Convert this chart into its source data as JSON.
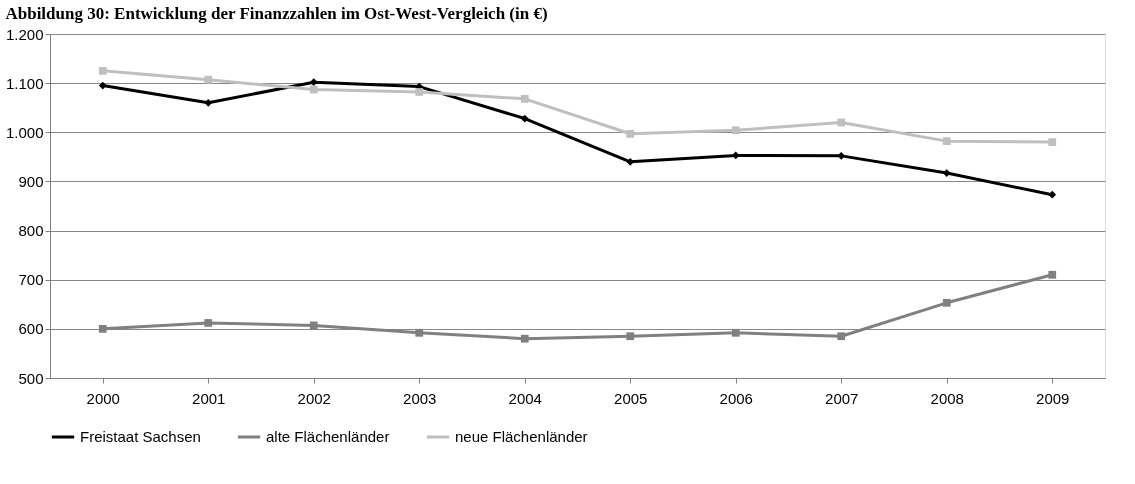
{
  "chart_data": {
    "type": "line",
    "title": "Abbildung 30: Entwicklung der Finanzzahlen im Ost-West-Vergleich (in €)",
    "categories": [
      "2000",
      "2001",
      "2002",
      "2003",
      "2004",
      "2005",
      "2006",
      "2007",
      "2008",
      "2009"
    ],
    "series": [
      {
        "name": "Freistaat Sachsen",
        "color": "#000000",
        "marker": "diamond",
        "values": [
          1095,
          1060,
          1102,
          1093,
          1028,
          940,
          953,
          952,
          917,
          873
        ]
      },
      {
        "name": "alte Flächenländer",
        "color": "#808080",
        "marker": "square",
        "values": [
          600,
          612,
          607,
          592,
          580,
          585,
          592,
          585,
          653,
          710
        ]
      },
      {
        "name": "neue Flächenländer",
        "color": "#bfbfbf",
        "marker": "square",
        "values": [
          1125,
          1107,
          1087,
          1082,
          1068,
          997,
          1004,
          1020,
          982,
          980
        ]
      }
    ],
    "ylim": [
      500,
      1200
    ],
    "yticks": [
      {
        "value": 500,
        "label": "500"
      },
      {
        "value": 600,
        "label": "600"
      },
      {
        "value": 700,
        "label": "700"
      },
      {
        "value": 800,
        "label": "800"
      },
      {
        "value": 900,
        "label": "900"
      },
      {
        "value": 1000,
        "label": "1.000"
      },
      {
        "value": 1100,
        "label": "1.100"
      },
      {
        "value": 1200,
        "label": "1.200"
      }
    ],
    "grid": "y",
    "legend": "bottom",
    "line_style": "solid"
  }
}
